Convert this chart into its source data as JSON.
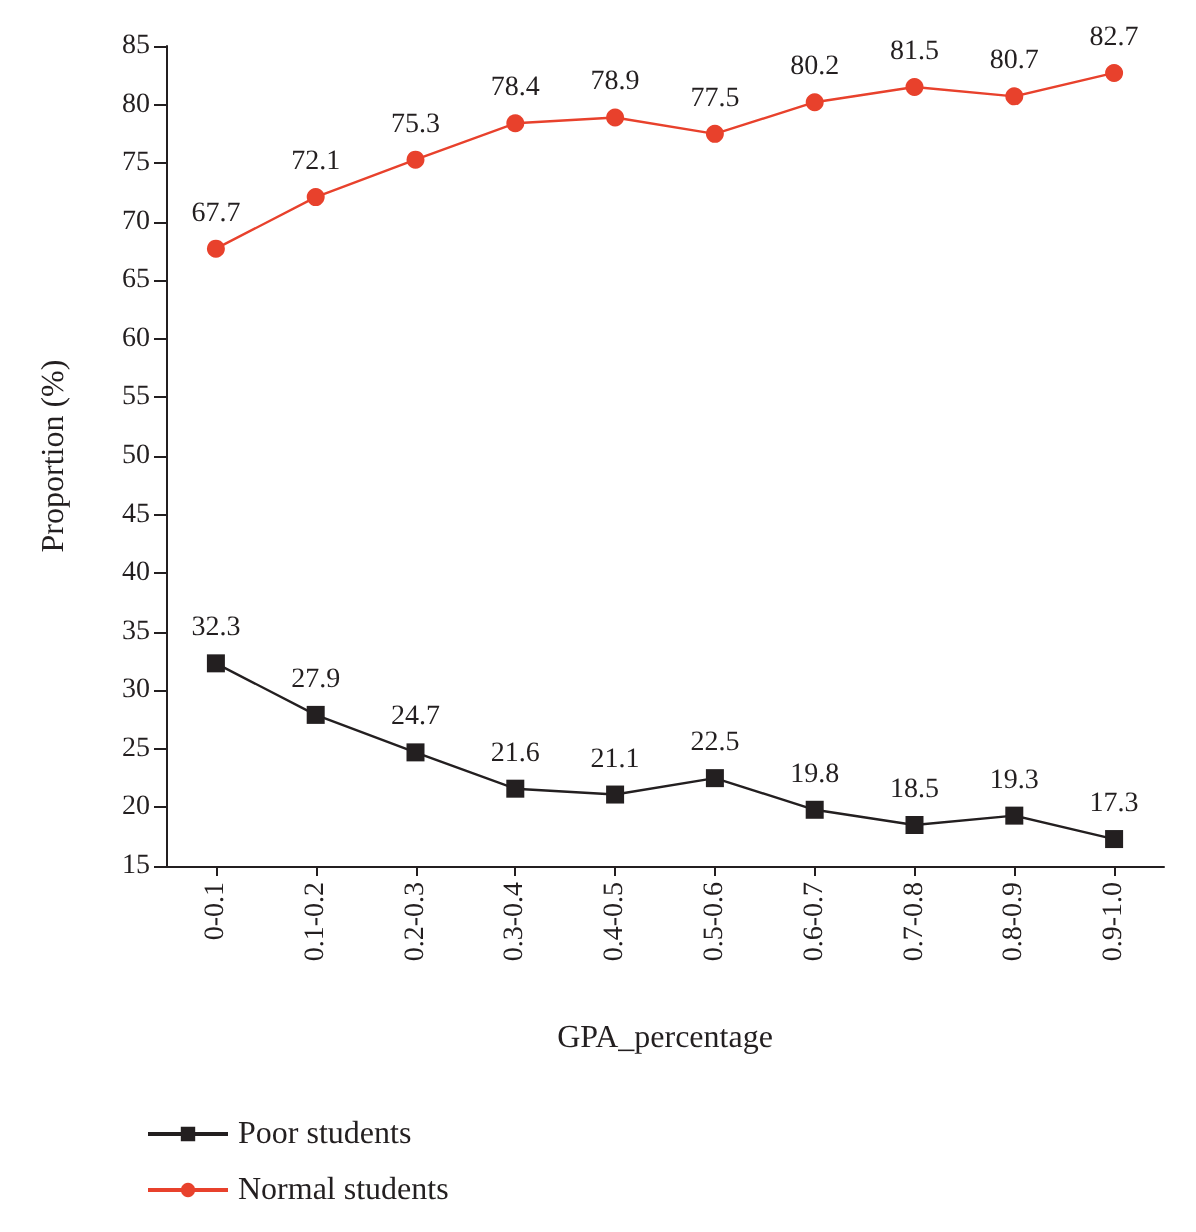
{
  "chart_data": {
    "type": "line",
    "xlabel": "GPA_percentage",
    "ylabel": "Proportion (%)",
    "categories": [
      "0-0.1",
      "0.1-0.2",
      "0.2-0.3",
      "0.3-0.4",
      "0.4-0.5",
      "0.5-0.6",
      "0.6-0.7",
      "0.7-0.8",
      "0.8-0.9",
      "0.9-1.0"
    ],
    "series": [
      {
        "name": "Poor students",
        "color": "#231f20",
        "marker": "square",
        "values": [
          32.3,
          27.9,
          24.7,
          21.6,
          21.1,
          22.5,
          19.8,
          18.5,
          19.3,
          17.3
        ]
      },
      {
        "name": "Normal students",
        "color": "#e8412c",
        "marker": "circle",
        "values": [
          67.7,
          72.1,
          75.3,
          78.4,
          78.9,
          77.5,
          80.2,
          81.5,
          80.7,
          82.7
        ]
      }
    ],
    "ylim": [
      15,
      85
    ],
    "yticks": [
      15,
      20,
      25,
      30,
      35,
      40,
      45,
      50,
      55,
      60,
      65,
      70,
      75,
      80,
      85
    ],
    "data_labels": true,
    "grid": false,
    "legend": "bottom left",
    "line_style": "solid"
  }
}
